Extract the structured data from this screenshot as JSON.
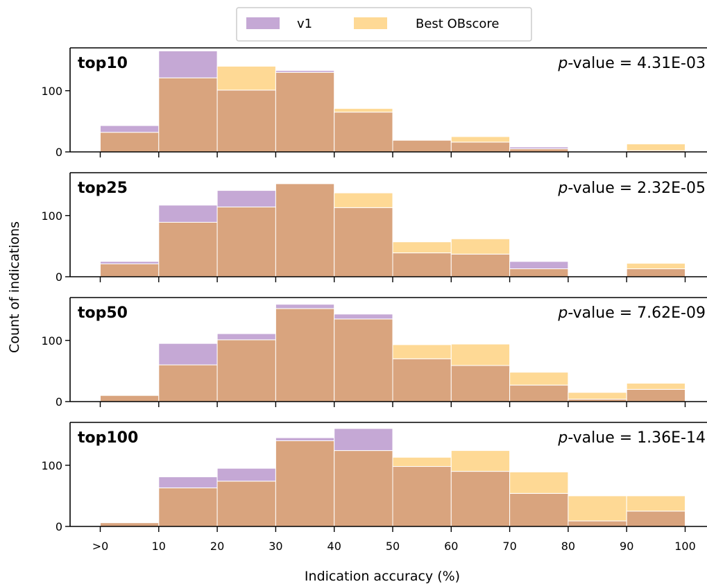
{
  "chart_data": {
    "type": "bar",
    "xlabel": "Indication accuracy (%)",
    "ylabel": "Count of indications",
    "x_tick_labels": [
      ">0",
      "10",
      "20",
      "30",
      "40",
      "50",
      "60",
      "70",
      "80",
      "90",
      "100"
    ],
    "bin_edges": [
      0,
      10,
      20,
      30,
      40,
      50,
      60,
      70,
      80,
      90,
      100
    ],
    "ylim": [
      0,
      170
    ],
    "y_ticks": [
      0,
      100
    ],
    "legend": {
      "placement": "top-center",
      "entries": [
        "v1",
        "Best OBscore"
      ]
    },
    "colors": {
      "v1": "#c5a8d5",
      "best": "#fed995",
      "overlap": "#d9a47e",
      "edge": "#ffffff"
    },
    "panels": [
      {
        "title": "top10",
        "pvalue_prefix": "p",
        "pvalue_text": "-value = 4.31E-03",
        "series": [
          {
            "name": "v1",
            "values": [
              43,
              165,
              101,
              133,
              65,
              19,
              16,
              8,
              0,
              2
            ]
          },
          {
            "name": "Best OBscore",
            "values": [
              32,
              121,
              140,
              130,
              71,
              19,
              25,
              5,
              0,
              13
            ]
          }
        ]
      },
      {
        "title": "top25",
        "pvalue_prefix": "p",
        "pvalue_text": "-value = 2.32E-05",
        "series": [
          {
            "name": "v1",
            "values": [
              25,
              117,
              141,
              152,
              113,
              39,
              37,
              25,
              0,
              13
            ]
          },
          {
            "name": "Best OBscore",
            "values": [
              21,
              89,
              114,
              152,
              137,
              57,
              62,
              13,
              0,
              22
            ]
          }
        ]
      },
      {
        "title": "top50",
        "pvalue_prefix": "p",
        "pvalue_text": "-value = 7.62E-09",
        "series": [
          {
            "name": "v1",
            "values": [
              10,
              95,
              111,
              159,
              143,
              70,
              59,
              27,
              4,
              20
            ]
          },
          {
            "name": "Best OBscore",
            "values": [
              10,
              60,
              101,
              152,
              135,
              93,
              94,
              48,
              15,
              30
            ]
          }
        ]
      },
      {
        "title": "top100",
        "pvalue_prefix": "p",
        "pvalue_text": "-value = 1.36E-14",
        "series": [
          {
            "name": "v1",
            "values": [
              6,
              81,
              95,
              145,
              160,
              98,
              90,
              54,
              9,
              25
            ]
          },
          {
            "name": "Best OBscore",
            "values": [
              6,
              63,
              74,
              140,
              124,
              113,
              124,
              89,
              50,
              50
            ]
          }
        ]
      }
    ]
  }
}
